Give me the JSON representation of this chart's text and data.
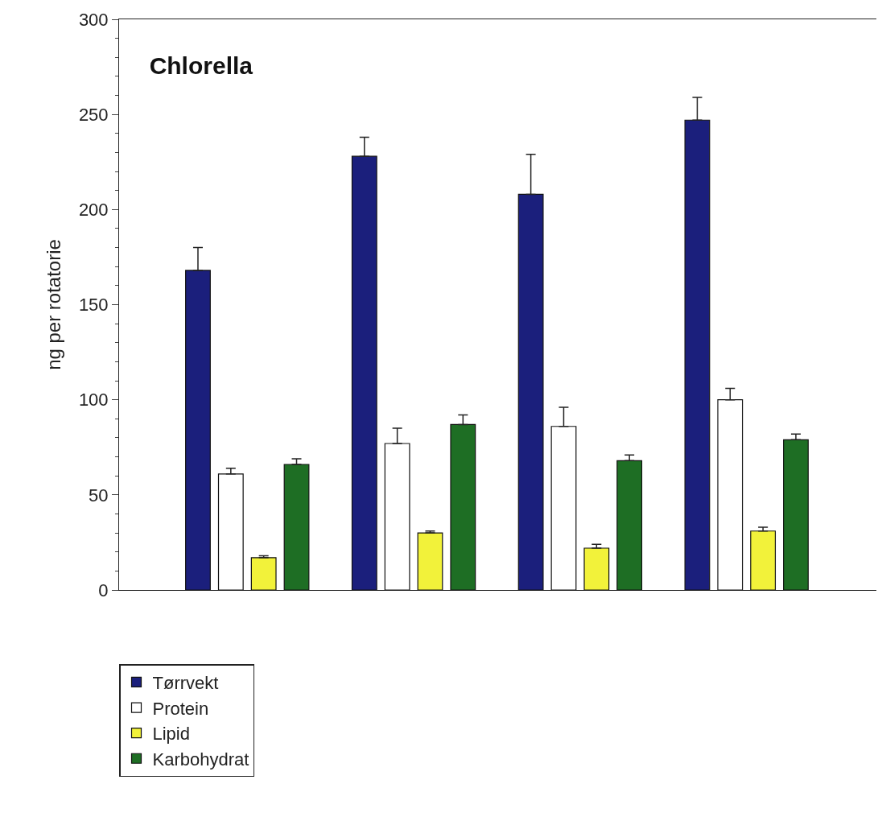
{
  "chart_data": {
    "type": "bar",
    "title": "Chlorella",
    "ylabel": "ng per rotatorie",
    "categories": [
      null,
      null,
      null,
      null
    ],
    "series": [
      {
        "name": "Tørrvekt",
        "color": "#1b1f7c",
        "values": [
          168,
          228,
          208,
          247
        ],
        "errors": [
          [
            168,
            180
          ],
          [
            228,
            238
          ],
          [
            208,
            229
          ],
          [
            247,
            259
          ]
        ]
      },
      {
        "name": "Protein",
        "color": "#ffffff",
        "values": [
          61,
          77,
          86,
          100
        ],
        "errors": [
          [
            61,
            64
          ],
          [
            77,
            85
          ],
          [
            86,
            96
          ],
          [
            100,
            106
          ]
        ]
      },
      {
        "name": "Lipid",
        "color": "#f2f23a",
        "values": [
          17,
          30,
          22,
          31
        ],
        "errors": [
          [
            17,
            18
          ],
          [
            30,
            31
          ],
          [
            22,
            24
          ],
          [
            31,
            33
          ]
        ]
      },
      {
        "name": "Karbohydrat",
        "color": "#1e6e24",
        "values": [
          66,
          87,
          68,
          79
        ],
        "errors": [
          [
            66,
            69
          ],
          [
            87,
            92
          ],
          [
            68,
            71
          ],
          [
            79,
            82
          ]
        ]
      }
    ],
    "ylim": [
      0,
      300
    ],
    "yticks": [
      0,
      50,
      100,
      150,
      200,
      250,
      300
    ],
    "legend": "bottom left",
    "tick_labels": "y"
  }
}
